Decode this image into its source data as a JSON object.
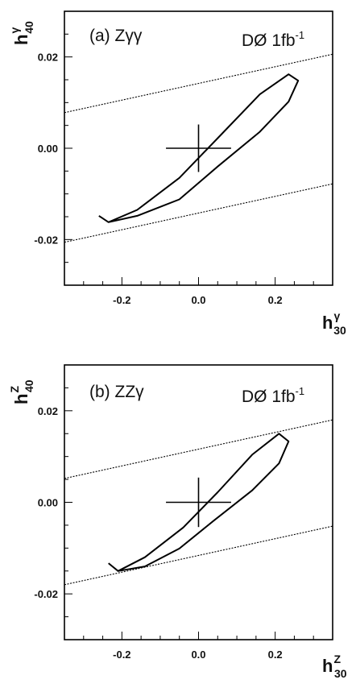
{
  "chart_data": [
    {
      "type": "line",
      "panel_label": "(a) Zγγ",
      "experiment_label": "DØ 1fb",
      "experiment_label_sup": "-1",
      "xlabel": {
        "base": "h",
        "sup": "γ",
        "sub": "30"
      },
      "ylabel": {
        "base": "h",
        "sup": "γ",
        "sub": "40"
      },
      "xlim": [
        -0.35,
        0.35
      ],
      "ylim": [
        -0.03,
        0.03
      ],
      "x_tick_labels": [
        "-0.2",
        "0.0",
        "0.2"
      ],
      "x_tick_values": [
        -0.2,
        0.0,
        0.2
      ],
      "y_tick_labels": [
        "-0.02",
        "0.00",
        "0.02"
      ],
      "y_tick_values": [
        -0.02,
        0.0,
        0.02
      ],
      "grid": false,
      "series": [
        {
          "style": "solid",
          "x": [
            -0.26,
            -0.235,
            -0.16,
            -0.05,
            0.05,
            0.16,
            0.235,
            0.26,
            0.235,
            0.16,
            0.05,
            -0.05,
            -0.16,
            -0.235,
            -0.26
          ],
          "y": [
            -0.0148,
            -0.0162,
            -0.0135,
            -0.0065,
            0.0022,
            0.0118,
            0.0162,
            0.0148,
            0.0102,
            0.0036,
            -0.004,
            -0.0112,
            -0.0148,
            -0.0162,
            -0.0148
          ]
        },
        {
          "style": "dotted",
          "x": [
            -0.35,
            0.35
          ],
          "y": [
            0.0078,
            0.0206
          ]
        },
        {
          "style": "dotted",
          "x": [
            -0.35,
            0.35
          ],
          "y": [
            -0.0206,
            -0.0078
          ]
        }
      ],
      "marker": {
        "x": 0.0,
        "y": 0.0,
        "x_err": 0.085,
        "y_err": 0.0052
      }
    },
    {
      "type": "line",
      "panel_label": "(b) ZZγ",
      "experiment_label": "DØ 1fb",
      "experiment_label_sup": "-1",
      "xlabel": {
        "base": "h",
        "sup": "Z",
        "sub": "30"
      },
      "ylabel": {
        "base": "h",
        "sup": "Z",
        "sub": "40"
      },
      "xlim": [
        -0.35,
        0.35
      ],
      "ylim": [
        -0.03,
        0.03
      ],
      "x_tick_labels": [
        "-0.2",
        "0.0",
        "0.2"
      ],
      "x_tick_values": [
        -0.2,
        0.0,
        0.2
      ],
      "y_tick_labels": [
        "-0.02",
        "0.00",
        "0.02"
      ],
      "y_tick_values": [
        -0.02,
        0.0,
        0.02
      ],
      "grid": false,
      "series": [
        {
          "style": "solid",
          "x": [
            -0.235,
            -0.21,
            -0.14,
            -0.04,
            0.05,
            0.14,
            0.21,
            0.235,
            0.21,
            0.14,
            0.04,
            -0.05,
            -0.14,
            -0.21,
            -0.235
          ],
          "y": [
            -0.0133,
            -0.015,
            -0.012,
            -0.0055,
            0.0022,
            0.0104,
            0.015,
            0.0133,
            0.0085,
            0.0026,
            -0.004,
            -0.0101,
            -0.014,
            -0.015,
            -0.0133
          ]
        },
        {
          "style": "dotted",
          "x": [
            -0.35,
            0.35
          ],
          "y": [
            0.0052,
            0.018
          ]
        },
        {
          "style": "dotted",
          "x": [
            -0.35,
            0.35
          ],
          "y": [
            -0.018,
            -0.0052
          ]
        }
      ],
      "marker": {
        "x": 0.0,
        "y": 0.0,
        "x_err": 0.085,
        "y_err": 0.0054
      }
    }
  ]
}
